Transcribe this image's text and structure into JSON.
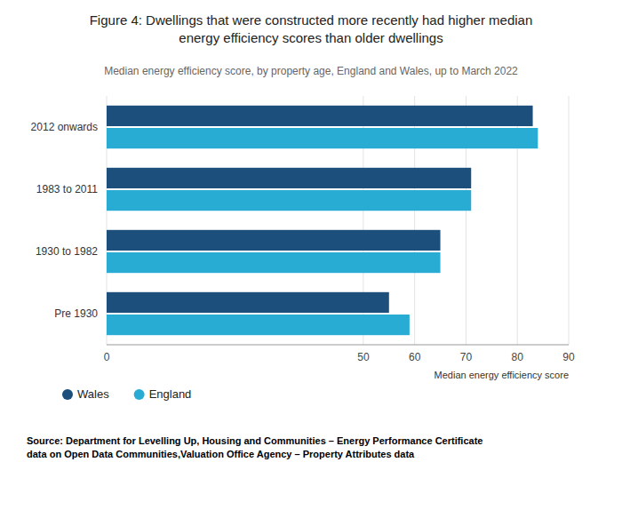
{
  "chart_data": {
    "type": "bar",
    "orientation": "horizontal",
    "title": "Figure 4: Dwellings that were constructed more recently had higher median\nenergy efficiency scores than older dwellings",
    "subtitle": "Median energy efficiency score, by property age, England and Wales, up to March 2022",
    "categories": [
      "Pre 1930",
      "1930 to 1982",
      "1983 to 2011",
      "2012 onwards"
    ],
    "series": [
      {
        "name": "Wales",
        "color": "#1c4f7c",
        "values": [
          55,
          65,
          71,
          83
        ]
      },
      {
        "name": "England",
        "color": "#29acd4",
        "values": [
          59,
          65,
          71,
          84
        ]
      }
    ],
    "xlim": [
      0,
      90
    ],
    "xticks": [
      0,
      50,
      60,
      70,
      80,
      90
    ],
    "xlabel": "Median energy efficiency score",
    "source": "Source: Department for Levelling Up, Housing and Communities – Energy Performance Certificate\ndata on Open Data Communities,Valuation Office Agency – Property Attributes data",
    "grid": true,
    "legend": "bottom"
  }
}
